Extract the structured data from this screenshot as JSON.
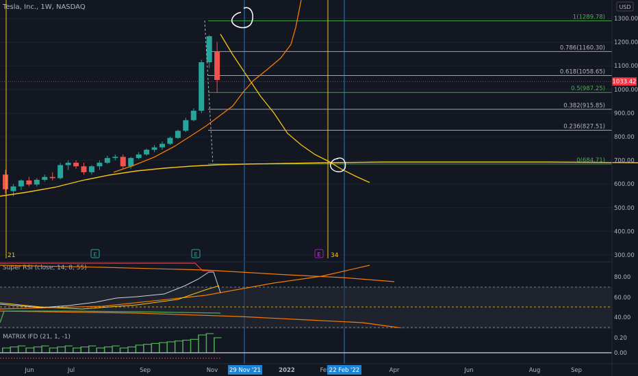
{
  "header": {
    "symbol_title": "Tesla, Inc., 1W, NASDAQ",
    "currency": "USD"
  },
  "price_axis": {
    "ticks": [
      "1300.00",
      "1200.00",
      "1100.00",
      "1000.00",
      "900.00",
      "800.00",
      "700.00",
      "600.00",
      "500.00",
      "400.00",
      "300.00"
    ],
    "last_price": "1033.42"
  },
  "rsi_axis": {
    "ticks": [
      "80.00",
      "60.00",
      "40.00"
    ]
  },
  "ifd_axis": {
    "ticks": [
      "0.20",
      "0.00"
    ]
  },
  "time_axis": {
    "labels": [
      "Jun",
      "Jul",
      "Sep",
      "Nov",
      "2022",
      "Feb",
      "Apr",
      "Jun",
      "Aug",
      "Sep"
    ],
    "cursor_labels": [
      "29 Nov '21",
      "22 Feb '22"
    ]
  },
  "fib_levels": [
    {
      "ratio": 1,
      "price": 1289.78,
      "label": "1(1289.78)",
      "color": "#4caf50"
    },
    {
      "ratio": 0.786,
      "price": 1160.3,
      "label": "0.786(1160.30)",
      "color": "#b2b5be"
    },
    {
      "ratio": 0.618,
      "price": 1058.65,
      "label": "0.618(1058.65)",
      "color": "#b2b5be"
    },
    {
      "ratio": 0.5,
      "price": 987.25,
      "label": "0.5(987.25)",
      "color": "#4caf50"
    },
    {
      "ratio": 0.382,
      "price": 915.85,
      "label": "0.382(915.85)",
      "color": "#b2b5be"
    },
    {
      "ratio": 0.236,
      "price": 827.51,
      "label": "0.236(827.51)",
      "color": "#b2b5be"
    },
    {
      "ratio": 0,
      "price": 684.71,
      "label": "0(684.71)",
      "color": "#4caf50"
    }
  ],
  "markers": {
    "e_badges": [
      "E",
      "E",
      "E"
    ],
    "cycle_left": "21",
    "cycle_right": "34"
  },
  "indicators": {
    "rsi_title": "Super RSI (close, 14, 8, 55)",
    "ifd_title": "MATRIX IFD (21, 1, -1)"
  },
  "chart_data": {
    "type": "candlestick",
    "candles": [
      {
        "o": 640,
        "h": 660,
        "l": 560,
        "c": 578
      },
      {
        "o": 570,
        "h": 600,
        "l": 548,
        "c": 590
      },
      {
        "o": 590,
        "h": 620,
        "l": 575,
        "c": 615
      },
      {
        "o": 615,
        "h": 630,
        "l": 590,
        "c": 598
      },
      {
        "o": 598,
        "h": 625,
        "l": 590,
        "c": 618
      },
      {
        "o": 618,
        "h": 640,
        "l": 610,
        "c": 630
      },
      {
        "o": 630,
        "h": 650,
        "l": 615,
        "c": 625
      },
      {
        "o": 625,
        "h": 690,
        "l": 620,
        "c": 680
      },
      {
        "o": 680,
        "h": 700,
        "l": 660,
        "c": 690
      },
      {
        "o": 690,
        "h": 700,
        "l": 665,
        "c": 675
      },
      {
        "o": 675,
        "h": 690,
        "l": 640,
        "c": 650
      },
      {
        "o": 650,
        "h": 680,
        "l": 640,
        "c": 675
      },
      {
        "o": 675,
        "h": 700,
        "l": 660,
        "c": 690
      },
      {
        "o": 690,
        "h": 720,
        "l": 685,
        "c": 710
      },
      {
        "o": 710,
        "h": 725,
        "l": 700,
        "c": 715
      },
      {
        "o": 715,
        "h": 725,
        "l": 665,
        "c": 675
      },
      {
        "o": 675,
        "h": 715,
        "l": 665,
        "c": 710
      },
      {
        "o": 710,
        "h": 735,
        "l": 705,
        "c": 725
      },
      {
        "o": 725,
        "h": 750,
        "l": 720,
        "c": 745
      },
      {
        "o": 745,
        "h": 765,
        "l": 735,
        "c": 755
      },
      {
        "o": 755,
        "h": 780,
        "l": 745,
        "c": 770
      },
      {
        "o": 770,
        "h": 800,
        "l": 765,
        "c": 795
      },
      {
        "o": 795,
        "h": 830,
        "l": 790,
        "c": 825
      },
      {
        "o": 825,
        "h": 880,
        "l": 820,
        "c": 870
      },
      {
        "o": 870,
        "h": 920,
        "l": 865,
        "c": 910
      },
      {
        "o": 910,
        "h": 1125,
        "l": 900,
        "c": 1115
      },
      {
        "o": 1115,
        "h": 1230,
        "l": 1090,
        "c": 1225
      },
      {
        "o": 1160,
        "h": 1200,
        "l": 985,
        "c": 1040
      }
    ],
    "price_ylim": [
      250,
      1330
    ]
  }
}
